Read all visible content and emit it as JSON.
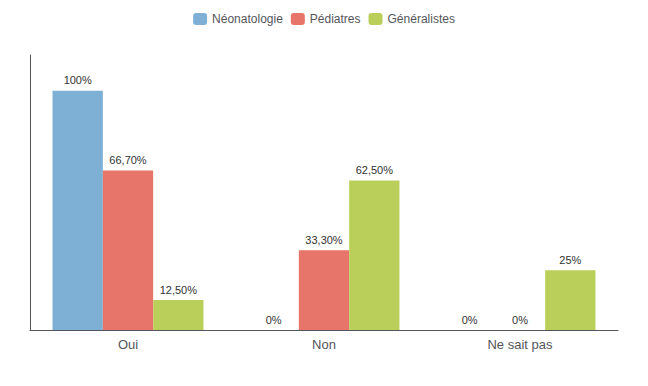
{
  "chart_data": {
    "type": "bar",
    "categories": [
      "Oui",
      "Non",
      "Ne sait pas"
    ],
    "series": [
      {
        "name": "Néonatologie",
        "color": "#7EB0D5",
        "values": [
          100,
          0,
          0
        ],
        "value_labels": [
          "100%",
          "0%",
          "0%"
        ]
      },
      {
        "name": "Pédiatres",
        "color": "#E8756A",
        "values": [
          66.7,
          33.3,
          0
        ],
        "value_labels": [
          "66,70%",
          "33,30%",
          "0%"
        ]
      },
      {
        "name": "Généralistes",
        "color": "#BACE5A",
        "values": [
          12.5,
          62.5,
          25
        ],
        "value_labels": [
          "12,50%",
          "62,50%",
          "25%"
        ]
      }
    ],
    "ylim": [
      0,
      115
    ],
    "data_labels": true,
    "tick_labels": "x",
    "legend": "top",
    "grid": false
  }
}
